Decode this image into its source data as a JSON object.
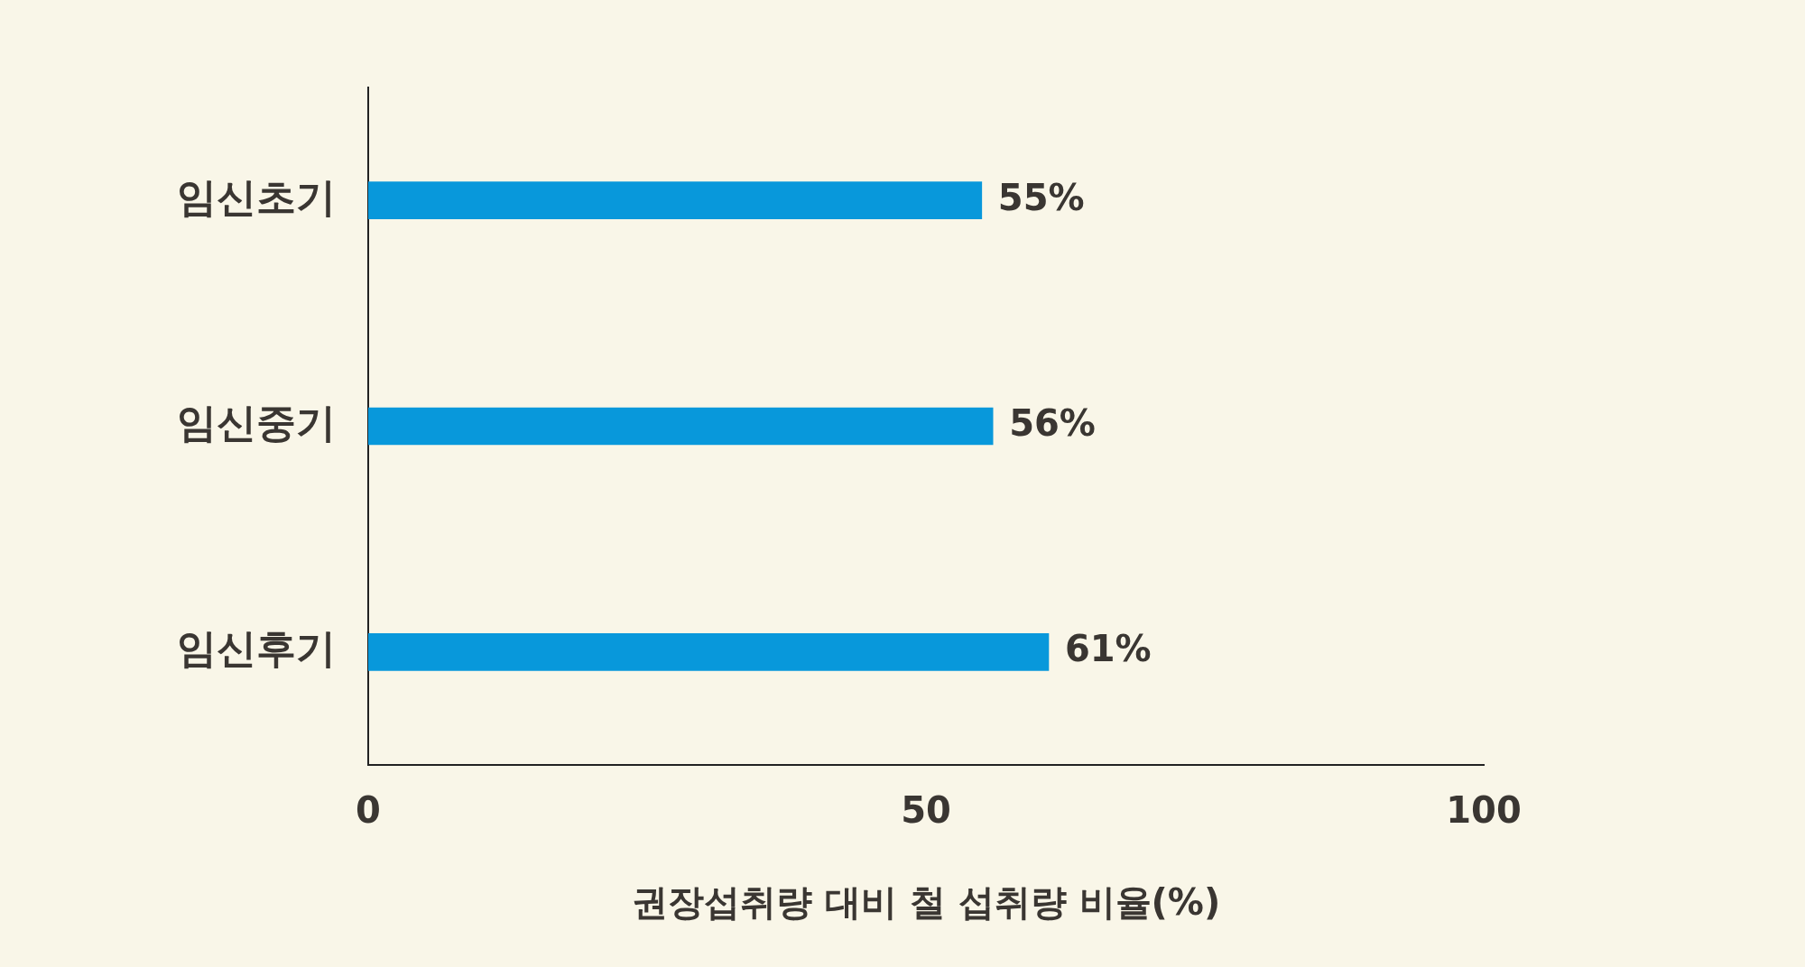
{
  "chart_data": {
    "type": "bar",
    "orientation": "horizontal",
    "categories": [
      "임신초기",
      "임신중기",
      "임신후기"
    ],
    "values": [
      55,
      56,
      61
    ],
    "color": "#0898db",
    "value_labels": [
      "55%",
      "56%",
      "61%"
    ],
    "xlim": [
      0,
      100
    ],
    "xticks": [
      0,
      50,
      100
    ],
    "xlabel": "권장섭취량 대비 철 섭취량 비율(%)",
    "grid": false,
    "legend": false
  }
}
